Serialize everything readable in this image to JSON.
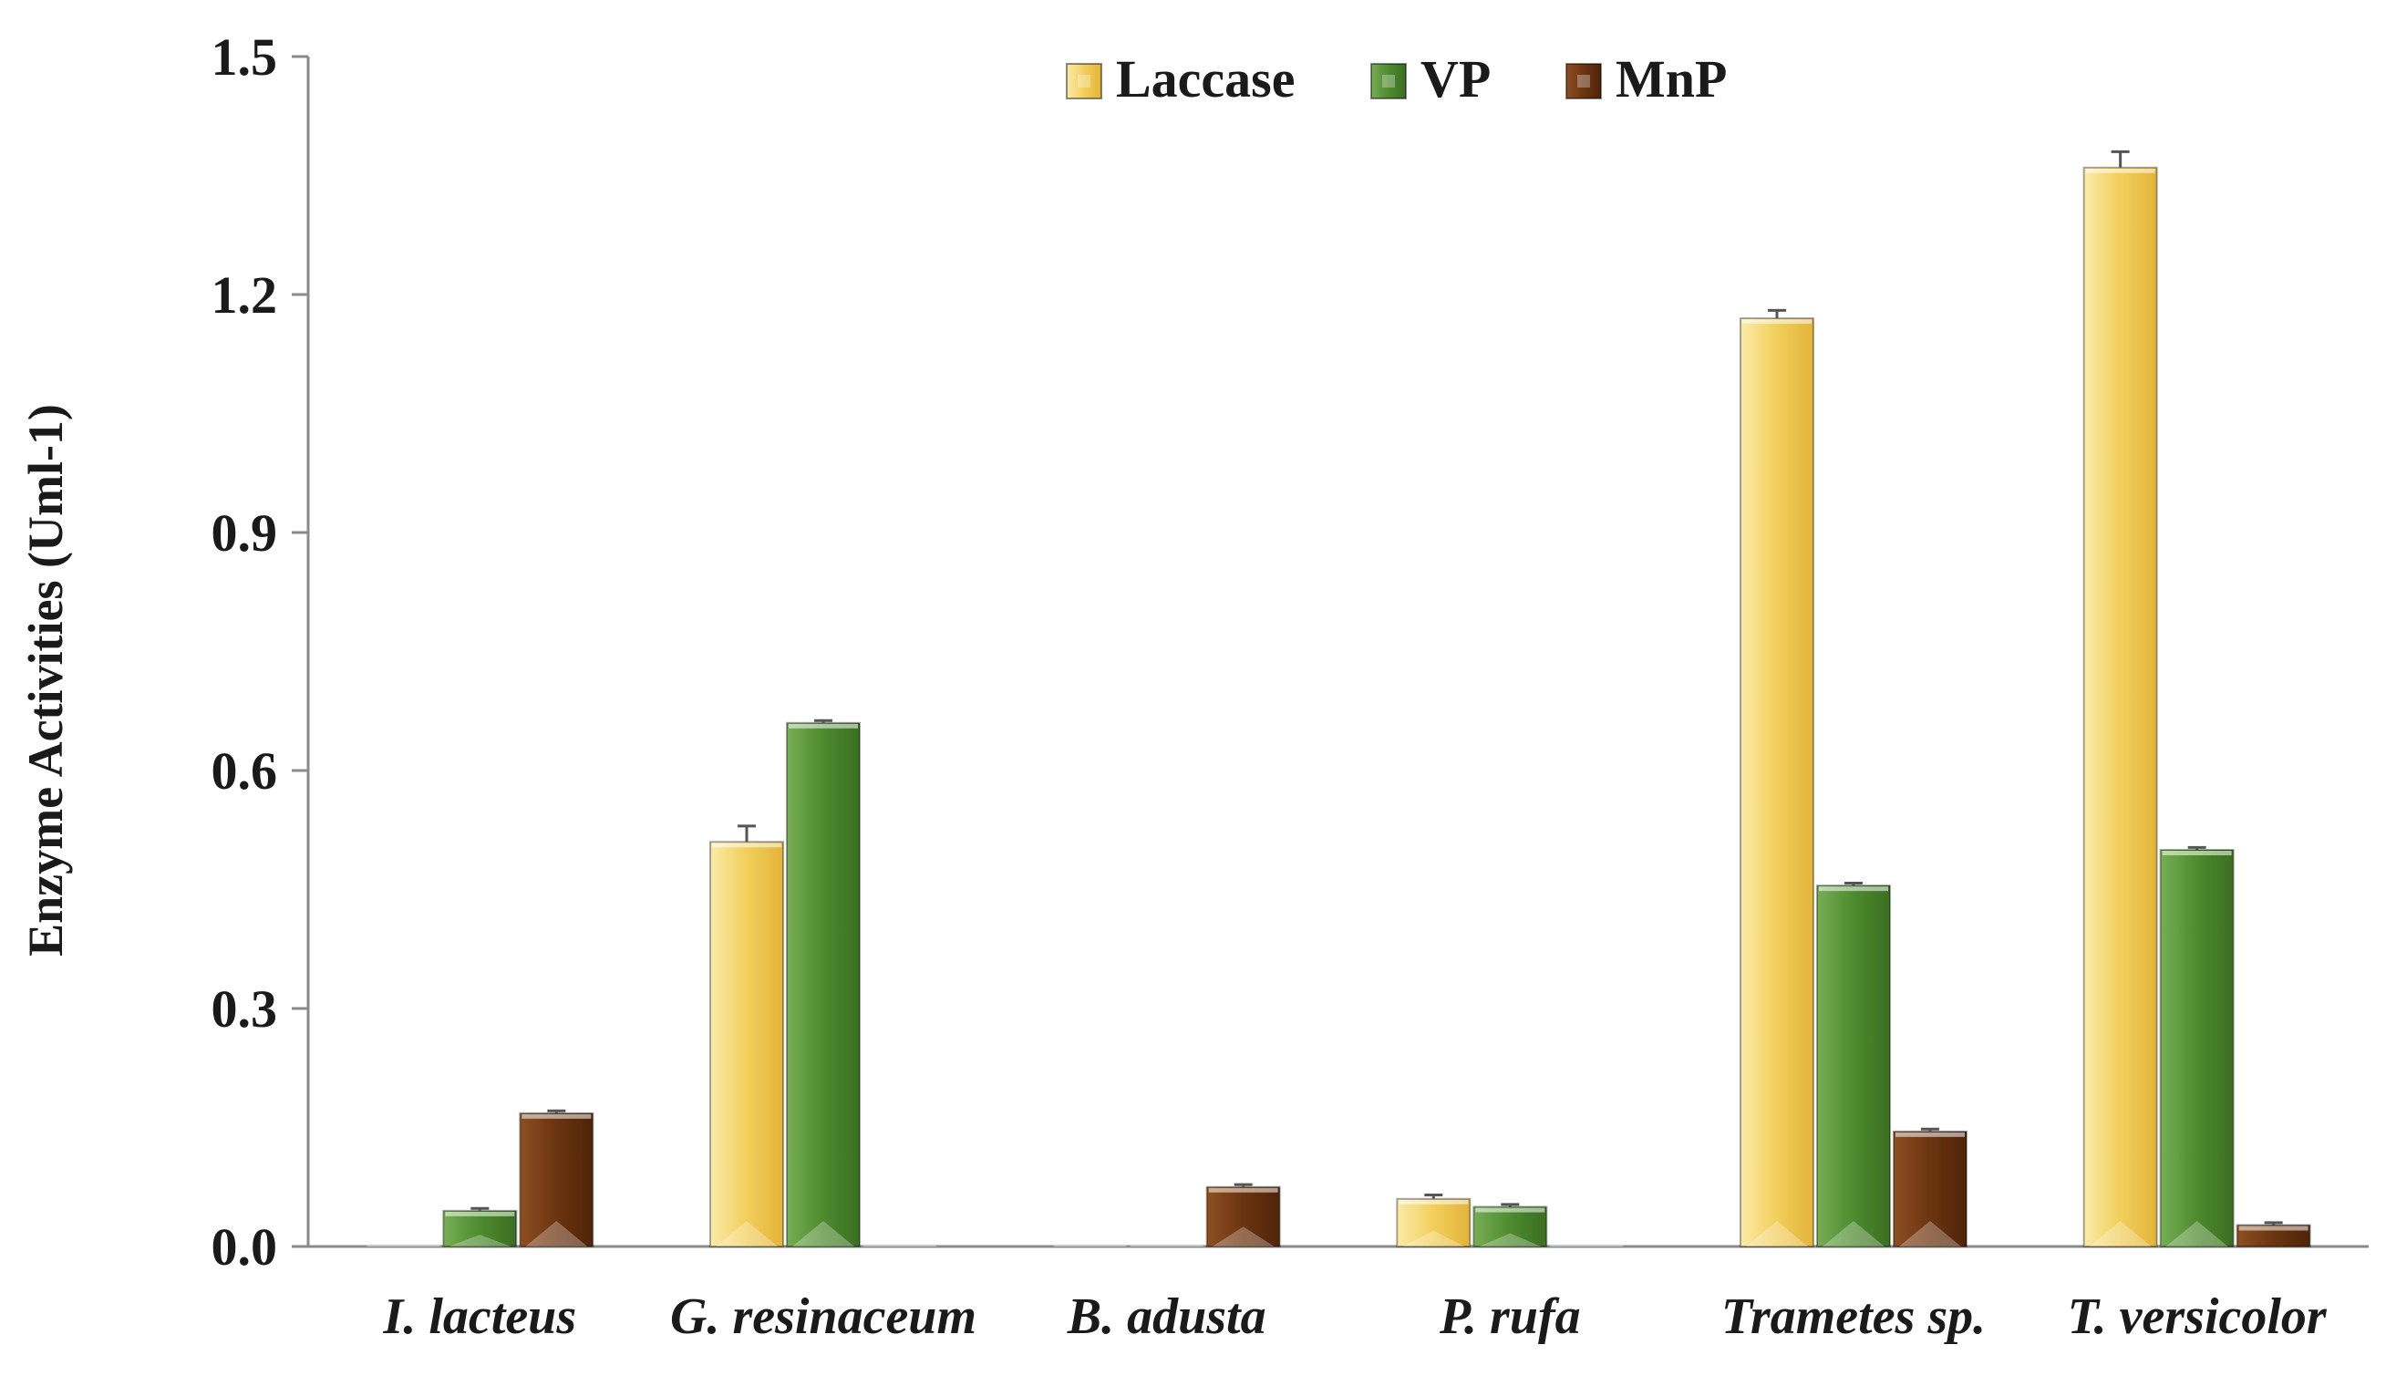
{
  "chart_data": {
    "type": "bar",
    "title": "",
    "xlabel": "",
    "ylabel": "Enzyme Activities (Uml-1)",
    "ylim": [
      0,
      1.5
    ],
    "yticks": [
      "0.0",
      "0.3",
      "0.6",
      "0.9",
      "1.2",
      "1.5"
    ],
    "ytick_values": [
      0,
      0.3,
      0.6,
      0.9,
      1.2,
      1.5
    ],
    "grid": false,
    "legend_position": "top-center",
    "categories": [
      "I. lacteus",
      "G. resinaceum",
      "B. adusta",
      "P. rufa",
      "Trametes sp.",
      "T. versicolor"
    ],
    "series": [
      {
        "name": "Laccase",
        "color": "#F2CF5B",
        "values": [
          0.0,
          0.51,
          0.0,
          0.06,
          1.17,
          1.36
        ],
        "errors": [
          0.0,
          0.02,
          0.0,
          0.005,
          0.01,
          0.02
        ]
      },
      {
        "name": "VP",
        "color": "#4E8A2E",
        "values": [
          0.045,
          0.66,
          0.0,
          0.05,
          0.455,
          0.5
        ],
        "errors": [
          0.003,
          0.003,
          0.0,
          0.003,
          0.003,
          0.003
        ]
      },
      {
        "name": "MnP",
        "color": "#6B3410",
        "values": [
          0.168,
          0.0,
          0.075,
          0.0,
          0.145,
          0.027
        ],
        "errors": [
          0.003,
          0.0,
          0.003,
          0.0,
          0.003,
          0.003
        ]
      }
    ]
  }
}
